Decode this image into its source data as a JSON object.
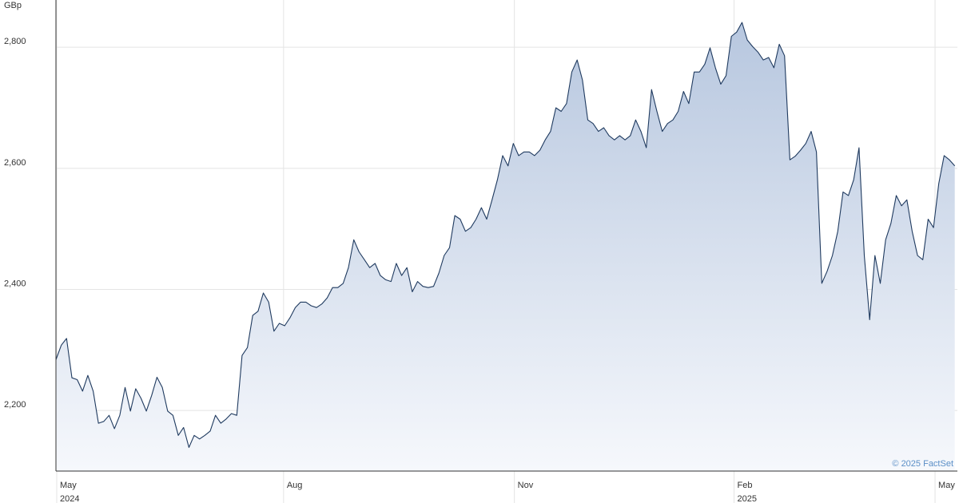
{
  "chart_data": {
    "type": "area",
    "unit_label": "GBp",
    "credit": "© 2025 FactSet",
    "color": "#1f3a5f",
    "fill_top": "#b7c7df",
    "fill_bottom": "#f6f8fc",
    "grid": true,
    "xlim": [
      0,
      169.5
    ],
    "ylim": [
      2100,
      2878
    ],
    "yticks": [
      {
        "value": 2200,
        "label": "2,200"
      },
      {
        "value": 2400,
        "label": "2,400"
      },
      {
        "value": 2600,
        "label": "2,600"
      },
      {
        "value": 2800,
        "label": "2,800"
      }
    ],
    "xticks": [
      {
        "value": 0.15,
        "label": "May",
        "year": "2024"
      },
      {
        "value": 42.8,
        "label": "Aug"
      },
      {
        "value": 86.2,
        "label": "Nov"
      },
      {
        "value": 127.5,
        "label": "Feb",
        "year": "2025"
      },
      {
        "value": 165.3,
        "label": "May"
      }
    ],
    "values": [
      2284,
      2308,
      2319,
      2254,
      2251,
      2232,
      2258,
      2232,
      2179,
      2182,
      2192,
      2170,
      2192,
      2238,
      2199,
      2236,
      2220,
      2199,
      2225,
      2255,
      2238,
      2199,
      2192,
      2159,
      2172,
      2139,
      2159,
      2153,
      2159,
      2166,
      2192,
      2179,
      2186,
      2195,
      2192,
      2291,
      2304,
      2357,
      2364,
      2394,
      2379,
      2331,
      2344,
      2340,
      2353,
      2370,
      2379,
      2379,
      2373,
      2370,
      2376,
      2386,
      2403,
      2403,
      2410,
      2436,
      2482,
      2462,
      2449,
      2436,
      2443,
      2423,
      2416,
      2413,
      2443,
      2423,
      2436,
      2396,
      2413,
      2405,
      2403,
      2405,
      2427,
      2456,
      2469,
      2522,
      2516,
      2496,
      2502,
      2516,
      2535,
      2516,
      2548,
      2581,
      2621,
      2604,
      2641,
      2621,
      2627,
      2627,
      2621,
      2630,
      2647,
      2661,
      2700,
      2694,
      2707,
      2759,
      2779,
      2746,
      2680,
      2674,
      2661,
      2667,
      2654,
      2647,
      2654,
      2647,
      2654,
      2680,
      2661,
      2634,
      2730,
      2694,
      2661,
      2674,
      2680,
      2694,
      2727,
      2707,
      2759,
      2759,
      2772,
      2799,
      2766,
      2739,
      2753,
      2818,
      2825,
      2841,
      2812,
      2801,
      2792,
      2779,
      2783,
      2766,
      2805,
      2786,
      2614,
      2620,
      2630,
      2641,
      2661,
      2627,
      2410,
      2430,
      2456,
      2496,
      2561,
      2555,
      2581,
      2634,
      2456,
      2350,
      2456,
      2410,
      2482,
      2509,
      2555,
      2538,
      2548,
      2496,
      2456,
      2449,
      2516,
      2502,
      2575,
      2621,
      2614,
      2604
    ]
  }
}
